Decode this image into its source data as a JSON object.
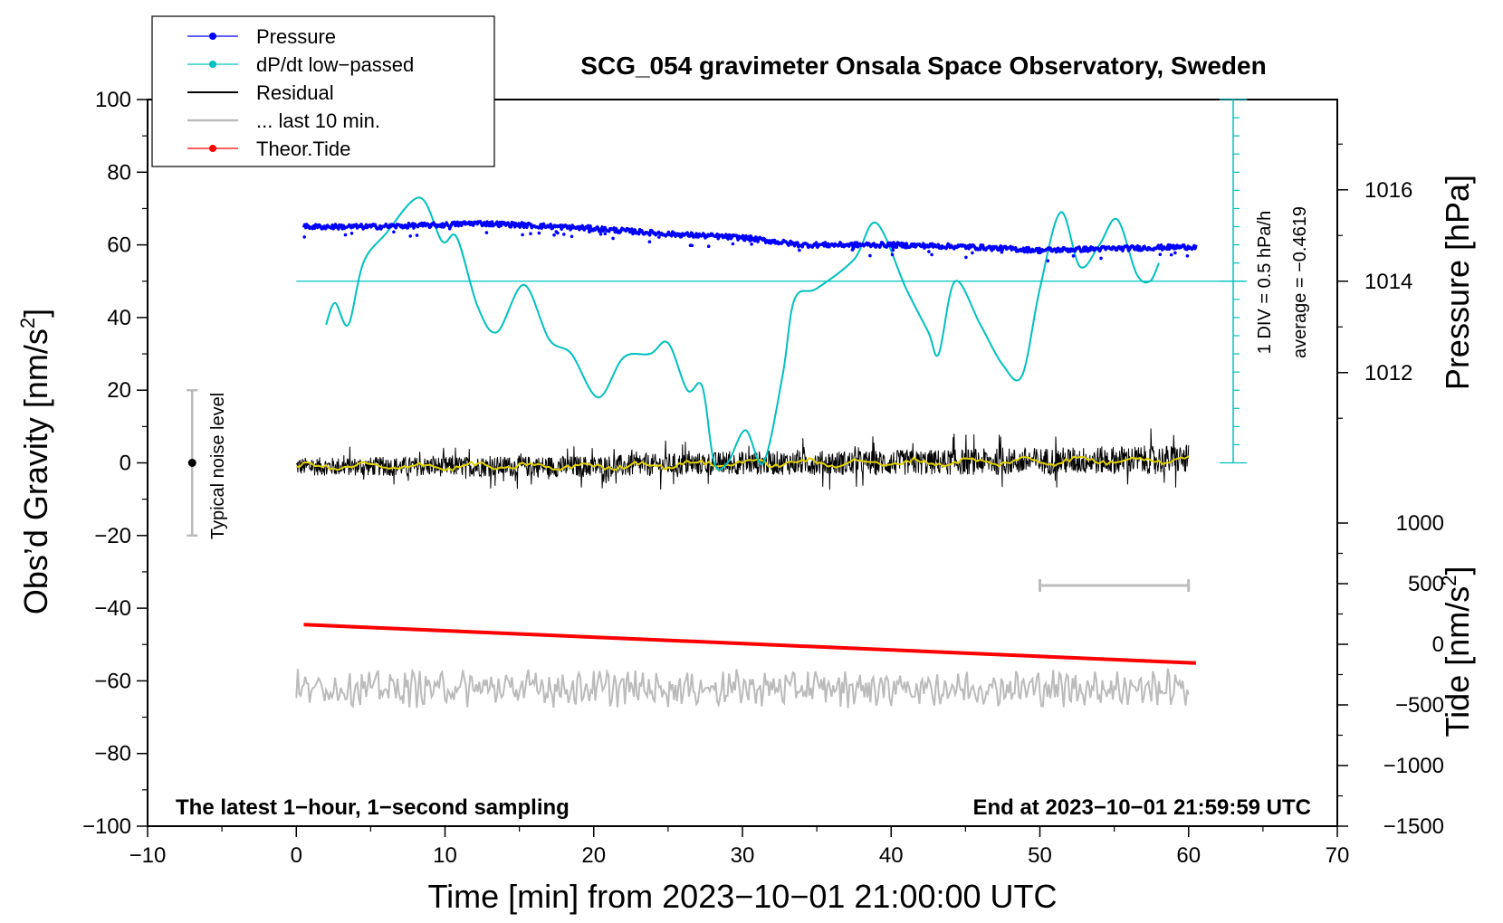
{
  "chart_data": {
    "type": "line",
    "title": "SCG_054 gravimeter Onsala Space Observatory, Sweden",
    "xlabel": "Time [min] from 2023−10−01 21:00:00 UTC",
    "xlim": [
      -10,
      70
    ],
    "x_ticks": [
      "−10",
      "0",
      "10",
      "20",
      "30",
      "40",
      "50",
      "60",
      "70"
    ],
    "y_left": {
      "label": "Obs’d Gravity [nm/s²]",
      "label_main": "Obs’d Gravity [nm/s",
      "label_sup": "2",
      "label_end": "]",
      "lim": [
        -100,
        100
      ],
      "ticks": [
        "100",
        "80",
        "60",
        "40",
        "20",
        "0",
        "−20",
        "−40",
        "−60",
        "−80",
        "−100"
      ]
    },
    "y_right_pressure": {
      "label": "Pressure [hPa]",
      "ticks": [
        "1016",
        "1014",
        "1012"
      ]
    },
    "y_right_tide": {
      "label": "Tide [nm/s²]",
      "label_main": "Tide [nm/s",
      "label_sup": "2",
      "label_end": "]",
      "lim": [
        -1500,
        1000
      ],
      "ticks": [
        "1000",
        "500",
        "0",
        "−500",
        "−1000",
        "−1500"
      ]
    },
    "legend": {
      "position": "top-left",
      "entries": [
        {
          "label": "Pressure",
          "color": "#0000ff"
        },
        {
          "label": "dP/dt low−passed",
          "color": "#00c0c0"
        },
        {
          "label": "Residual",
          "color": "#000000"
        },
        {
          "label": "... last 10 min.",
          "color": "#bbbbbb"
        },
        {
          "label": "Theor.Tide",
          "color": "#ff0000"
        }
      ]
    },
    "annotations": {
      "noise_label": "Typical noise level",
      "noise_range": [
        -20,
        20
      ],
      "noise_x": -7,
      "dpdt_div": "1 DIV = 0.5 hPa/h",
      "dpdt_avg": "average = −0.4619",
      "bottom_left": "The latest 1−hour, 1−second sampling",
      "bottom_right": "End at 2023−10−01 21:59:59 UTC",
      "last10_range": [
        50,
        60
      ]
    },
    "series": [
      {
        "name": "Pressure",
        "color": "#0000ff",
        "x": [
          0.5,
          5,
          10,
          12,
          15,
          20,
          25,
          30,
          34,
          38,
          40,
          45,
          50,
          55,
          60.5
        ],
        "y": [
          65,
          65,
          65.5,
          66,
          65.5,
          64.5,
          63,
          62,
          60,
          60,
          60,
          59.5,
          58.5,
          59,
          59.5
        ]
      },
      {
        "name": "dP/dt low−passed",
        "color": "#00c0c0",
        "x": [
          2,
          2.6,
          3.5,
          4.5,
          6,
          8.3,
          9.8,
          10.8,
          12.2,
          13.5,
          15.3,
          17,
          18.5,
          20.3,
          22,
          23.8,
          25,
          26.3,
          27.3,
          28.1,
          29,
          30.2,
          31.4,
          32.7,
          33.5,
          35,
          37.5,
          39,
          41,
          42.5,
          43.2,
          44.3,
          46,
          47.5,
          48.8,
          50,
          51.4,
          52.7,
          54,
          55.2,
          56.5,
          57.4,
          58
        ],
        "y": [
          38,
          44,
          38,
          55,
          63,
          73,
          61,
          62,
          43,
          36,
          49,
          34,
          30,
          18,
          29,
          30,
          33,
          20,
          21,
          0,
          0,
          9,
          0,
          24,
          45,
          48,
          56,
          66,
          48,
          36,
          30,
          50,
          38,
          27,
          24,
          48,
          69,
          54,
          60,
          67,
          52,
          50,
          55
        ]
      },
      {
        "name": "Residual (smoothed)",
        "color": "#e0d000",
        "x": [
          0,
          10,
          20,
          30,
          40,
          50,
          60
        ],
        "y": [
          -1,
          -1,
          -1,
          0,
          0,
          0.5,
          1
        ]
      },
      {
        "name": "Theor.Tide",
        "color": "#ff0000",
        "axis": "tide",
        "x": [
          0.5,
          60.5
        ],
        "y": [
          162,
          -155
        ]
      },
      {
        "name": "... last 10 min.",
        "color": "#bbbbbb",
        "x": [
          0,
          60
        ],
        "y": [
          -62,
          -62
        ]
      }
    ]
  }
}
